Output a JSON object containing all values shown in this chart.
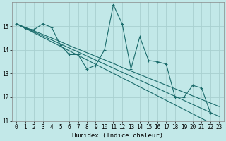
{
  "title": "",
  "xlabel": "Humidex (Indice chaleur)",
  "ylabel": "",
  "background_color": "#c2e8e8",
  "grid_color": "#a8d0d0",
  "line_color": "#1a6b6b",
  "x": [
    0,
    1,
    2,
    3,
    4,
    5,
    6,
    7,
    8,
    9,
    10,
    11,
    12,
    13,
    14,
    15,
    16,
    17,
    18,
    19,
    20,
    21,
    22,
    23
  ],
  "y_main": [
    15.1,
    14.9,
    14.85,
    15.1,
    14.95,
    14.2,
    13.8,
    13.8,
    13.2,
    13.35,
    14.0,
    15.9,
    15.1,
    13.2,
    14.55,
    13.55,
    13.5,
    13.4,
    12.0,
    12.0,
    12.5,
    12.4,
    11.35,
    null
  ],
  "y_reg1": [
    15.1,
    14.95,
    14.8,
    14.65,
    14.5,
    14.35,
    14.18,
    14.03,
    13.88,
    13.73,
    13.58,
    13.43,
    13.26,
    13.11,
    12.96,
    12.81,
    12.66,
    12.51,
    12.36,
    12.21,
    12.06,
    11.91,
    11.76,
    11.61
  ],
  "y_reg2": [
    15.1,
    14.93,
    14.76,
    14.59,
    14.42,
    14.25,
    14.08,
    13.91,
    13.74,
    13.57,
    13.4,
    13.23,
    13.06,
    12.89,
    12.72,
    12.55,
    12.38,
    12.21,
    12.04,
    11.87,
    11.7,
    11.53,
    11.36,
    11.19
  ],
  "y_reg3": [
    15.1,
    14.91,
    14.72,
    14.53,
    14.34,
    14.15,
    13.96,
    13.77,
    13.58,
    13.39,
    13.2,
    13.01,
    12.82,
    12.63,
    12.44,
    12.25,
    12.06,
    11.87,
    11.68,
    11.49,
    11.3,
    11.11,
    10.92,
    10.73
  ],
  "ylim": [
    11,
    16
  ],
  "ytop": 16,
  "xlim": [
    -0.5,
    23.5
  ],
  "yticks": [
    11,
    12,
    13,
    14,
    15
  ],
  "xticks": [
    0,
    1,
    2,
    3,
    4,
    5,
    6,
    7,
    8,
    9,
    10,
    11,
    12,
    13,
    14,
    15,
    16,
    17,
    18,
    19,
    20,
    21,
    22,
    23
  ],
  "font_family": "monospace",
  "xlabel_fontsize": 6.5,
  "tick_fontsize": 5.5
}
